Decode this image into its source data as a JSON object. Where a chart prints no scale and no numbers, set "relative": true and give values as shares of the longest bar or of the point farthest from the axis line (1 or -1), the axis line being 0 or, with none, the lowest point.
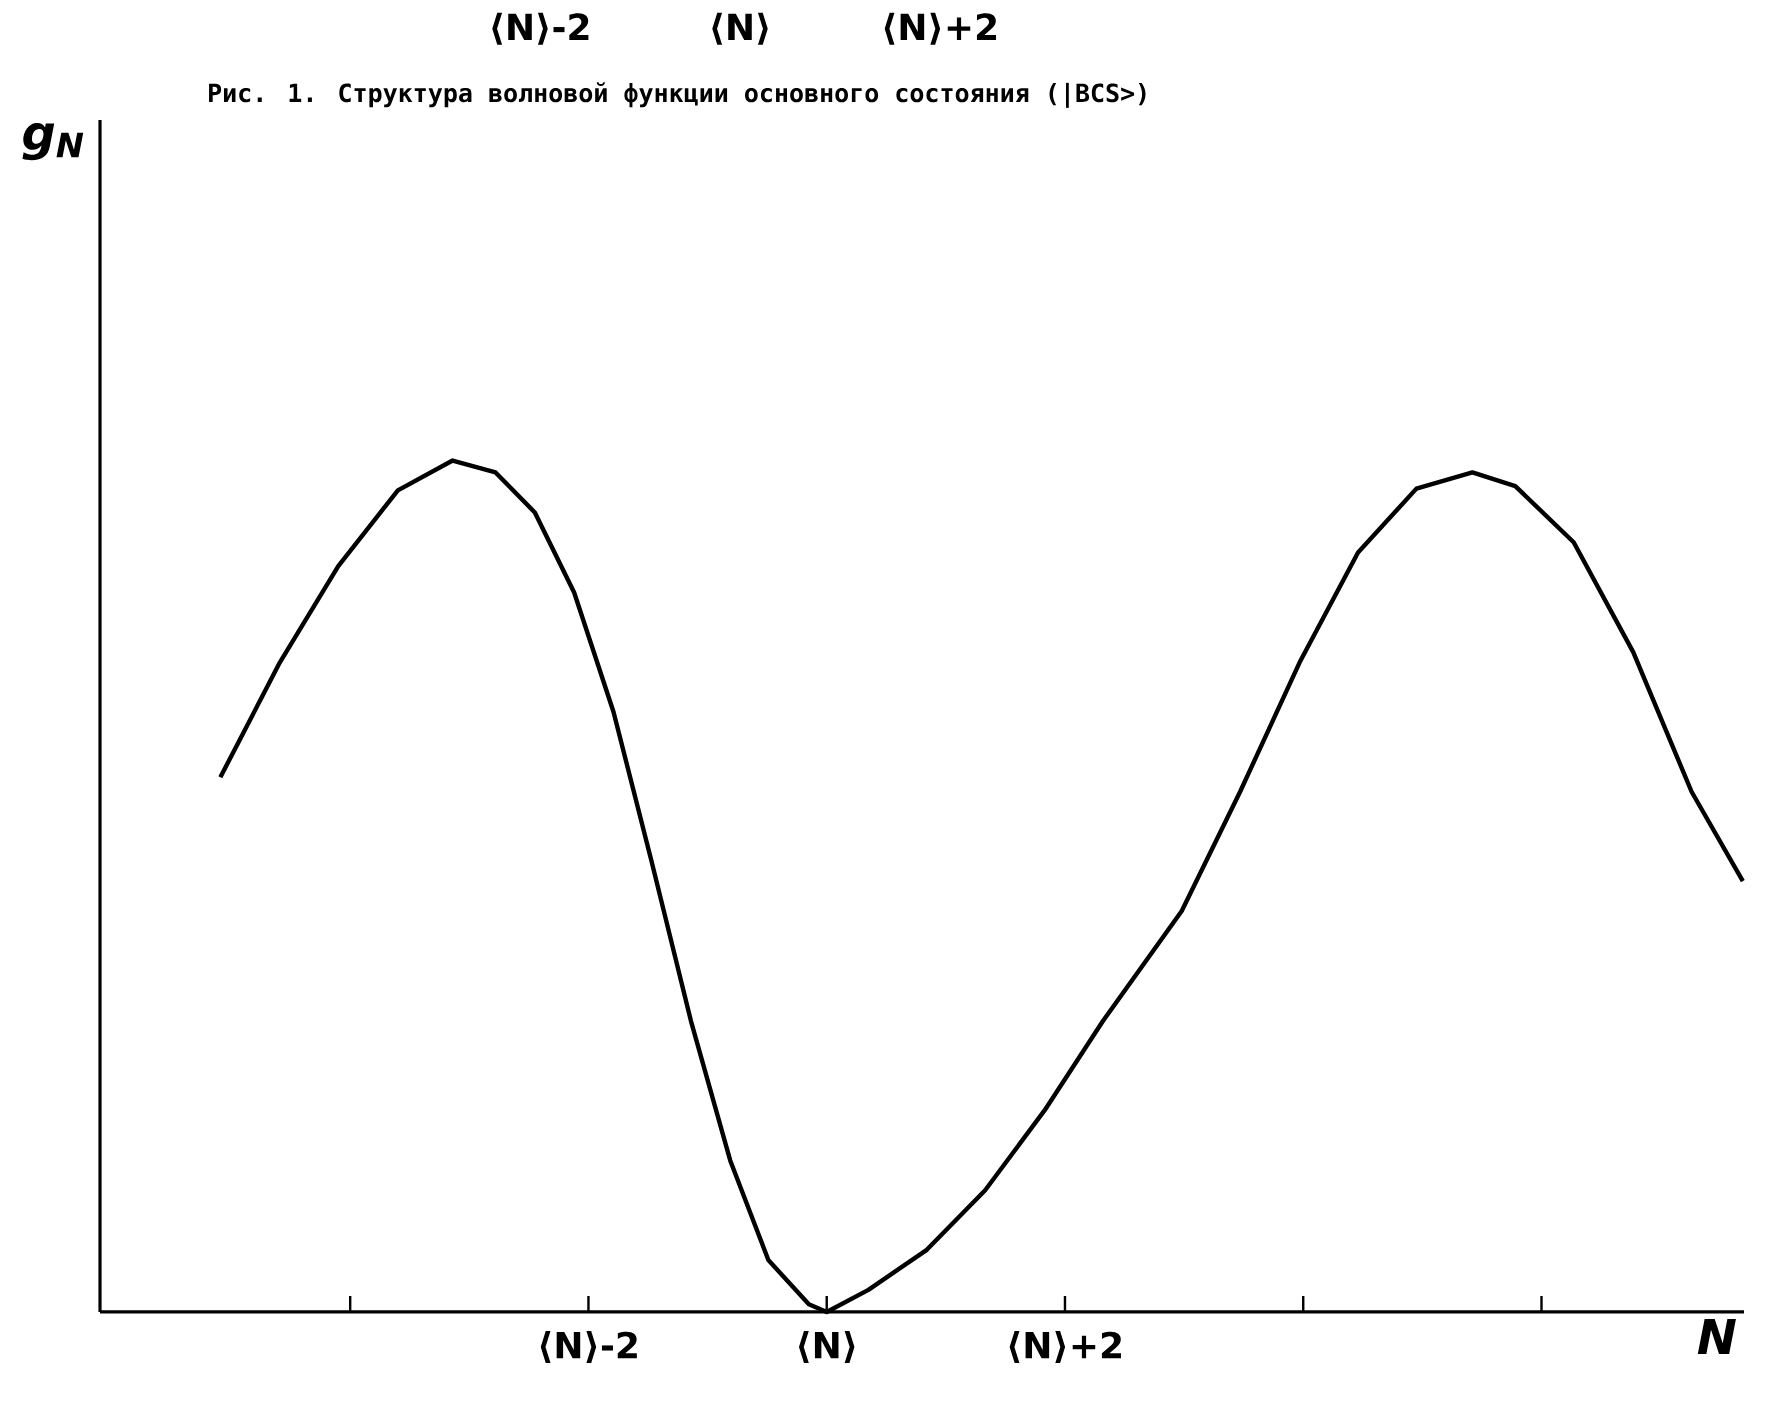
{
  "chart_data": {
    "type": "line",
    "title": "Рис. 1. Структура волновой функции основного состояния (|BCS>)",
    "xlabel": "N",
    "annotations": [
      "⟨N⟩-2",
      "⟨N⟩",
      "⟨N⟩+2",
      "g$_{N}$"
    ],
    "relative": true,
    "xlim": [
      -6.1,
      7.7
    ],
    "xticks": [
      {
        "value": -4,
        "label": null
      },
      {
        "value": -2,
        "label": "⟨N⟩-2"
      },
      {
        "value": 0,
        "label": "⟨N⟩"
      },
      {
        "value": 2,
        "label": "⟨N⟩+2"
      },
      {
        "value": 4,
        "label": null
      },
      {
        "value": 6,
        "label": null
      }
    ],
    "x": [
      -5.09,
      -4.59,
      -4.1,
      -3.6,
      -3.14,
      -2.78,
      -2.45,
      -2.12,
      -1.79,
      -1.47,
      -1.14,
      -0.81,
      -0.49,
      -0.15,
      0,
      0.35,
      0.84,
      1.33,
      1.83,
      2.32,
      2.98,
      3.47,
      3.97,
      4.46,
      4.95,
      5.42,
      5.78,
      6.27,
      6.77,
      7.26,
      7.69
    ],
    "values": [
      0.628,
      0.763,
      0.876,
      0.965,
      1.0,
      0.986,
      0.939,
      0.845,
      0.705,
      0.529,
      0.342,
      0.178,
      0.061,
      0.009,
      0,
      0.026,
      0.073,
      0.143,
      0.237,
      0.342,
      0.471,
      0.611,
      0.763,
      0.892,
      0.967,
      0.986,
      0.97,
      0.904,
      0.775,
      0.611,
      0.506
    ]
  }
}
